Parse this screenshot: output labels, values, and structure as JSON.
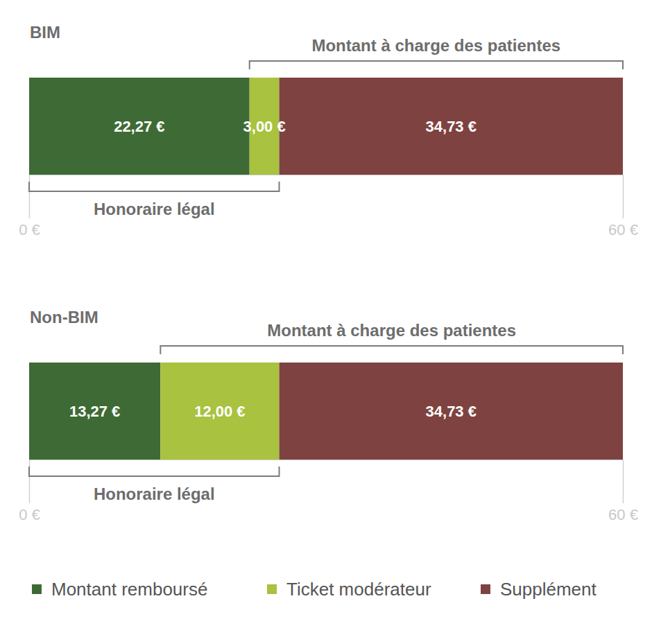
{
  "chart_data": {
    "type": "bar",
    "orientation": "horizontal",
    "stacked": true,
    "data_labels": true,
    "legend": "bottom",
    "categories": [
      "BIM",
      "Non-BIM"
    ],
    "xlim": [
      0,
      60
    ],
    "xticks": [
      {
        "value": 0,
        "label": "0 €"
      },
      {
        "value": 60,
        "label": "60 €"
      }
    ],
    "series": [
      {
        "name": "Montant remboursé",
        "color": "#3e6b35",
        "values": [
          22.27,
          13.27
        ],
        "value_labels": [
          "22,27 €",
          "13,27 €"
        ]
      },
      {
        "name": "Ticket modérateur",
        "color": "#a9c23f",
        "values": [
          3.0,
          12.0
        ],
        "value_labels": [
          "3,00 €",
          "12,00 €"
        ]
      },
      {
        "name": "Supplément",
        "color": "#7e4340",
        "values": [
          34.73,
          34.73
        ],
        "value_labels": [
          "34,73 €",
          "34,73 €"
        ]
      }
    ],
    "annotations": [
      {
        "text": "Montant à charge des patientes",
        "series": [
          1,
          2
        ]
      },
      {
        "text": "Honoraire légal",
        "series": [
          0,
          1
        ]
      }
    ]
  }
}
